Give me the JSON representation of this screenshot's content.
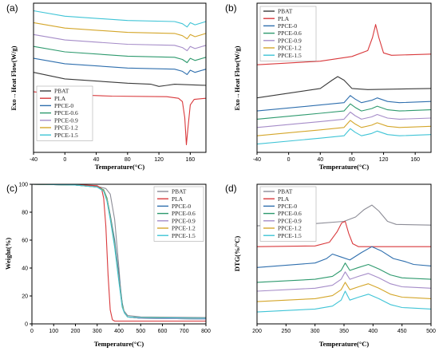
{
  "chart_data": [
    {
      "panel": "(a)",
      "type": "line",
      "xlabel": "Temperature(°C)",
      "ylabel": "Exo→Heat Flow(W/g)",
      "xlim": [
        -40,
        180
      ],
      "xticks": [
        -40,
        0,
        40,
        80,
        120,
        160
      ],
      "legend_position": "bottom-left",
      "series": [
        {
          "name": "PBAT",
          "color": "#3a3a3a",
          "x": [
            -40,
            0,
            80,
            110,
            120,
            130,
            140,
            180
          ],
          "y": [
            2.2,
            1.6,
            1.2,
            1.1,
            0.9,
            1.0,
            1.1,
            1.0
          ]
        },
        {
          "name": "PLA",
          "color": "#d9393c",
          "x": [
            -40,
            0,
            60,
            130,
            145,
            150,
            153,
            155,
            157,
            160,
            165,
            180
          ],
          "y": [
            0.4,
            0.15,
            0.0,
            -0.05,
            -0.2,
            -0.5,
            -2.0,
            -4.5,
            -3.0,
            -0.8,
            -0.3,
            -0.2
          ]
        },
        {
          "name": "PPCE-0",
          "color": "#2f6fae",
          "x": [
            -40,
            0,
            80,
            140,
            150,
            156,
            160,
            166,
            180
          ],
          "y": [
            3.5,
            3.0,
            2.6,
            2.5,
            2.3,
            2.0,
            2.4,
            2.2,
            2.5
          ]
        },
        {
          "name": "PPCE-0.6",
          "color": "#2e9a6e",
          "x": [
            -40,
            0,
            80,
            140,
            150,
            156,
            160,
            166,
            180
          ],
          "y": [
            4.6,
            4.1,
            3.7,
            3.6,
            3.4,
            3.1,
            3.5,
            3.3,
            3.6
          ]
        },
        {
          "name": "PPCE-0.9",
          "color": "#a58cc8",
          "x": [
            -40,
            0,
            80,
            140,
            150,
            156,
            160,
            166,
            180
          ],
          "y": [
            5.7,
            5.2,
            4.8,
            4.7,
            4.5,
            4.2,
            4.6,
            4.4,
            4.7
          ]
        },
        {
          "name": "PPCE-1.2",
          "color": "#d4a62a",
          "x": [
            -40,
            0,
            80,
            140,
            150,
            156,
            160,
            166,
            180
          ],
          "y": [
            6.8,
            6.3,
            5.9,
            5.8,
            5.6,
            5.3,
            5.7,
            5.5,
            5.8
          ]
        },
        {
          "name": "PPCE-1.5",
          "color": "#3fc4d6",
          "x": [
            -40,
            0,
            80,
            140,
            150,
            156,
            160,
            166,
            180
          ],
          "y": [
            7.9,
            7.4,
            7.0,
            6.9,
            6.7,
            6.4,
            6.8,
            6.6,
            6.9
          ]
        }
      ]
    },
    {
      "panel": "(b)",
      "type": "line",
      "xlabel": "Temperature(°C)",
      "ylabel": "Exo→Heat Flow(W/g)",
      "xlim": [
        -40,
        180
      ],
      "xticks": [
        -40,
        0,
        40,
        80,
        120,
        160
      ],
      "legend_position": "top-left",
      "series": [
        {
          "name": "PBAT",
          "color": "#3a3a3a",
          "x": [
            -40,
            0,
            40,
            55,
            62,
            70,
            80,
            100,
            180
          ],
          "y": [
            4.4,
            4.8,
            5.2,
            5.9,
            6.2,
            5.9,
            5.2,
            5.1,
            5.2
          ]
        },
        {
          "name": "PLA",
          "color": "#d9393c",
          "x": [
            -40,
            40,
            80,
            100,
            106,
            110,
            114,
            120,
            130,
            180
          ],
          "y": [
            7.2,
            7.5,
            7.9,
            8.4,
            9.5,
            10.6,
            9.5,
            8.2,
            8.0,
            8.1
          ]
        },
        {
          "name": "PPCE-0",
          "color": "#2f6fae",
          "x": [
            -40,
            40,
            70,
            78,
            84,
            92,
            105,
            112,
            125,
            140,
            180
          ],
          "y": [
            3.3,
            3.8,
            4.0,
            4.6,
            4.3,
            4.0,
            4.2,
            4.4,
            4.1,
            4.0,
            4.1
          ]
        },
        {
          "name": "PPCE-0.6",
          "color": "#2e9a6e",
          "x": [
            -40,
            40,
            70,
            78,
            84,
            92,
            105,
            112,
            125,
            140,
            180
          ],
          "y": [
            2.6,
            3.1,
            3.3,
            3.9,
            3.6,
            3.3,
            3.5,
            3.7,
            3.4,
            3.3,
            3.4
          ]
        },
        {
          "name": "PPCE-0.9",
          "color": "#a58cc8",
          "x": [
            -40,
            40,
            70,
            78,
            84,
            92,
            105,
            112,
            125,
            140,
            180
          ],
          "y": [
            1.9,
            2.4,
            2.6,
            3.2,
            2.9,
            2.6,
            2.8,
            3.0,
            2.7,
            2.6,
            2.7
          ]
        },
        {
          "name": "PPCE-1.2",
          "color": "#d4a62a",
          "x": [
            -40,
            40,
            70,
            78,
            84,
            92,
            105,
            112,
            125,
            140,
            180
          ],
          "y": [
            1.2,
            1.7,
            1.9,
            2.5,
            2.2,
            1.9,
            2.1,
            2.3,
            2.0,
            1.9,
            2.0
          ]
        },
        {
          "name": "PPCE-1.5",
          "color": "#3fc4d6",
          "x": [
            -40,
            40,
            70,
            78,
            84,
            92,
            105,
            112,
            125,
            140,
            180
          ],
          "y": [
            0.5,
            1.0,
            1.2,
            1.8,
            1.5,
            1.2,
            1.4,
            1.6,
            1.3,
            1.2,
            1.3
          ]
        }
      ]
    },
    {
      "panel": "(c)",
      "type": "line",
      "xlabel": "Temperature(°C)",
      "ylabel": "Weight(%)",
      "xlim": [
        0,
        800
      ],
      "ylim": [
        0,
        100
      ],
      "xticks": [
        0,
        100,
        200,
        300,
        400,
        500,
        600,
        700,
        800
      ],
      "yticks": [
        0,
        20,
        40,
        60,
        80,
        100
      ],
      "legend_position": "top-right",
      "series": [
        {
          "name": "PBAT",
          "color": "#8c8c96",
          "x": [
            0,
            200,
            300,
            340,
            360,
            380,
            400,
            410,
            420,
            440,
            500,
            800
          ],
          "y": [
            100,
            99.5,
            98.5,
            97,
            93,
            75,
            40,
            20,
            10,
            6,
            5,
            4.5
          ]
        },
        {
          "name": "PLA",
          "color": "#d9393c",
          "x": [
            0,
            200,
            300,
            320,
            330,
            340,
            350,
            360,
            370,
            380,
            800
          ],
          "y": [
            100,
            99.8,
            99,
            97,
            90,
            70,
            35,
            10,
            3,
            2,
            2
          ]
        },
        {
          "name": "PPCE-0",
          "color": "#2f6fae",
          "x": [
            0,
            200,
            300,
            330,
            345,
            360,
            380,
            400,
            415,
            425,
            440,
            500,
            800
          ],
          "y": [
            100,
            99.5,
            98,
            96,
            90,
            78,
            60,
            35,
            15,
            8,
            5,
            4,
            3.5
          ]
        },
        {
          "name": "PPCE-0.6",
          "color": "#2e9a6e",
          "x": [
            0,
            200,
            300,
            330,
            345,
            360,
            380,
            400,
            415,
            425,
            440,
            500,
            800
          ],
          "y": [
            100,
            99.5,
            98,
            96,
            90,
            77,
            58,
            33,
            14,
            8,
            5,
            4,
            3.5
          ]
        },
        {
          "name": "PPCE-0.9",
          "color": "#a58cc8",
          "x": [
            0,
            200,
            300,
            330,
            345,
            360,
            380,
            400,
            415,
            425,
            440,
            500,
            800
          ],
          "y": [
            100,
            99.5,
            98,
            95.5,
            89,
            76,
            57,
            32,
            13,
            8,
            5,
            4,
            3.5
          ]
        },
        {
          "name": "PPCE-1.2",
          "color": "#d4a62a",
          "x": [
            0,
            200,
            300,
            330,
            345,
            360,
            380,
            400,
            415,
            425,
            440,
            500,
            800
          ],
          "y": [
            100,
            99.5,
            98,
            95.5,
            89,
            76,
            56,
            31,
            13,
            8,
            5,
            4.5,
            4
          ]
        },
        {
          "name": "PPCE-1.5",
          "color": "#3fc4d6",
          "x": [
            0,
            200,
            300,
            330,
            345,
            360,
            380,
            400,
            415,
            425,
            440,
            500,
            800
          ],
          "y": [
            100,
            99.5,
            98,
            95,
            88,
            75,
            55,
            30,
            12,
            8,
            5,
            4.5,
            4
          ]
        }
      ]
    },
    {
      "panel": "(d)",
      "type": "line",
      "xlabel": "Temperature(°C)",
      "ylabel": "DTG(%/°C)",
      "xlim": [
        200,
        500
      ],
      "xticks": [
        200,
        250,
        300,
        350,
        400,
        450,
        500
      ],
      "legend_position": "top-left",
      "series": [
        {
          "name": "PBAT",
          "color": "#8c8c96",
          "x": [
            200,
            300,
            350,
            370,
            385,
            398,
            410,
            425,
            440,
            500
          ],
          "y": [
            6.0,
            6.15,
            6.3,
            6.6,
            7.1,
            7.4,
            7.0,
            6.3,
            6.1,
            6.05
          ]
        },
        {
          "name": "PLA",
          "color": "#d9393c",
          "x": [
            200,
            300,
            325,
            338,
            346,
            352,
            358,
            365,
            375,
            500
          ],
          "y": [
            4.6,
            4.65,
            4.9,
            5.6,
            6.2,
            6.3,
            5.5,
            4.8,
            4.6,
            4.6
          ]
        },
        {
          "name": "PPCE-0",
          "color": "#2f6fae",
          "x": [
            200,
            300,
            320,
            330,
            345,
            360,
            380,
            398,
            415,
            435,
            455,
            470,
            500
          ],
          "y": [
            3.2,
            3.5,
            3.8,
            4.1,
            3.9,
            3.7,
            4.2,
            4.6,
            4.3,
            3.8,
            3.6,
            3.4,
            3.3
          ]
        },
        {
          "name": "PPCE-0.6",
          "color": "#2e9a6e",
          "x": [
            200,
            300,
            330,
            345,
            352,
            360,
            375,
            392,
            410,
            430,
            450,
            500
          ],
          "y": [
            2.2,
            2.4,
            2.6,
            3.0,
            3.5,
            3.0,
            3.2,
            3.4,
            3.1,
            2.7,
            2.5,
            2.4
          ]
        },
        {
          "name": "PPCE-0.9",
          "color": "#a58cc8",
          "x": [
            200,
            300,
            330,
            345,
            352,
            360,
            375,
            392,
            410,
            430,
            450,
            500
          ],
          "y": [
            1.6,
            1.8,
            2.0,
            2.4,
            2.9,
            2.4,
            2.6,
            2.8,
            2.5,
            2.1,
            1.9,
            1.8
          ]
        },
        {
          "name": "PPCE-1.2",
          "color": "#d4a62a",
          "x": [
            200,
            300,
            330,
            345,
            352,
            360,
            375,
            392,
            410,
            430,
            450,
            500
          ],
          "y": [
            0.9,
            1.1,
            1.3,
            1.7,
            2.2,
            1.7,
            1.9,
            2.1,
            1.8,
            1.4,
            1.2,
            1.1
          ]
        },
        {
          "name": "PPCE-1.5",
          "color": "#3fc4d6",
          "x": [
            200,
            300,
            330,
            345,
            352,
            360,
            375,
            392,
            410,
            430,
            450,
            500
          ],
          "y": [
            0.2,
            0.4,
            0.6,
            1.0,
            1.6,
            1.0,
            1.2,
            1.4,
            1.1,
            0.7,
            0.5,
            0.4
          ]
        }
      ]
    }
  ]
}
